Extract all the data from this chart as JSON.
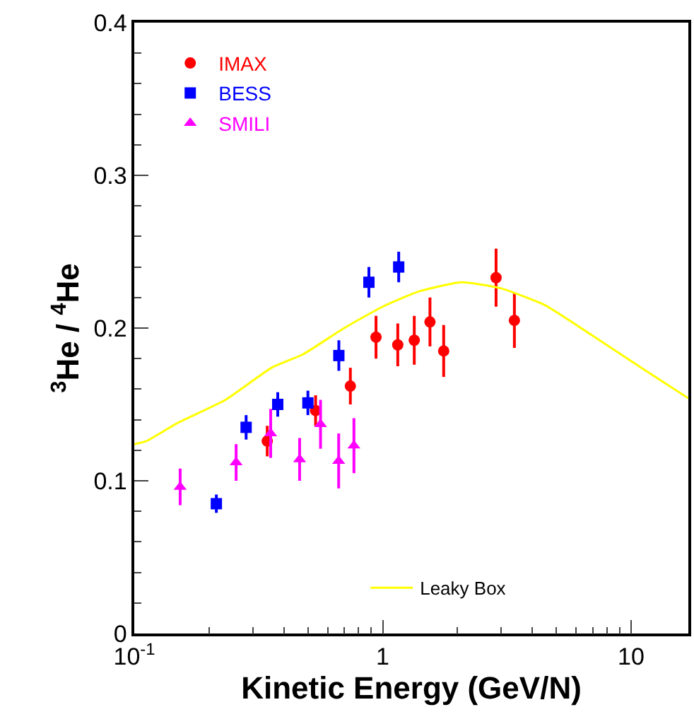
{
  "chart_data": {
    "type": "scatter",
    "xlabel": "Kinetic Energy (GeV/N)",
    "ylabel": "$^{3}$He / $^{4}$He",
    "log": "x",
    "xlim": [
      0.1,
      17
    ],
    "xticks": [
      {
        "value": 0.1,
        "label": "10$^{-1}$"
      },
      1,
      10
    ],
    "ylim": [
      0,
      0.4
    ],
    "yticks": [
      0,
      0.1,
      0.2,
      0.3,
      0.4
    ],
    "legend": "top left",
    "series": [
      {
        "name": "IMAX",
        "color": "#ff0000",
        "marker": "circle",
        "x": [
          0.343,
          0.537,
          0.741,
          0.94,
          1.15,
          1.34,
          1.55,
          1.76,
          2.86,
          3.39
        ],
        "values": [
          0.126,
          0.146,
          0.162,
          0.194,
          0.189,
          0.192,
          0.204,
          0.185,
          0.233,
          0.205
        ],
        "errors": [
          0.01,
          0.01,
          0.012,
          0.014,
          0.014,
          0.016,
          0.016,
          0.017,
          0.019,
          0.018
        ]
      },
      {
        "name": "BESS",
        "color": "#0000ff",
        "marker": "square",
        "x": [
          0.214,
          0.282,
          0.378,
          0.5,
          0.666,
          0.88,
          1.16
        ],
        "values": [
          0.085,
          0.135,
          0.15,
          0.151,
          0.182,
          0.23,
          0.24
        ],
        "errors": [
          0.006,
          0.008,
          0.008,
          0.008,
          0.01,
          0.01,
          0.01
        ]
      },
      {
        "name": "SMILI",
        "color": "#ff00ff",
        "marker": "triangle",
        "x": [
          0.153,
          0.257,
          0.354,
          0.463,
          0.562,
          0.665,
          0.766
        ],
        "values": [
          0.096,
          0.112,
          0.131,
          0.114,
          0.137,
          0.113,
          0.123
        ],
        "errors": [
          0.012,
          0.012,
          0.016,
          0.014,
          0.016,
          0.018,
          0.018
        ]
      },
      {
        "name": "Leaky Box",
        "type": "line",
        "color": "#ffff00",
        "marker": "none",
        "x": [
          0.1,
          0.112,
          0.15,
          0.233,
          0.357,
          0.48,
          0.7,
          1,
          1.4,
          2.07,
          3,
          4.5,
          7,
          11,
          17
        ],
        "values": [
          0.124,
          0.126,
          0.138,
          0.153,
          0.174,
          0.183,
          0.2,
          0.214,
          0.224,
          0.23,
          0.226,
          0.215,
          0.195,
          0.174,
          0.154
        ]
      }
    ]
  }
}
